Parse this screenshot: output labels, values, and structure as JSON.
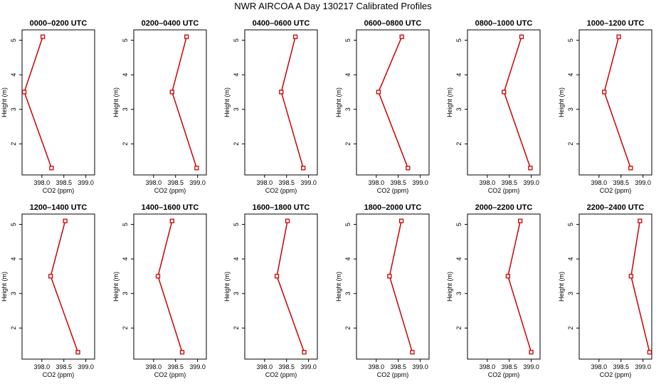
{
  "title": "NWR AIRCOA A  Day 130217  Calibrated Profiles",
  "colors": {
    "line": "#cc0000",
    "axis": "#000000",
    "background": "#ffffff"
  },
  "chart_data": [
    {
      "type": "line",
      "title": "0000–0200 UTC",
      "xlabel": "CO2 (ppm)",
      "ylabel": "Height (m)",
      "xlim": [
        397.55,
        399.2
      ],
      "ylim": [
        1.1,
        5.3
      ],
      "x_ticks": [
        "398.0",
        "398.5",
        "399.0"
      ],
      "y_ticks": [
        "2",
        "3",
        "4",
        "5"
      ],
      "grid": false,
      "x": [
        398.02,
        397.6,
        398.22
      ],
      "y": [
        5.1,
        3.5,
        1.3
      ]
    },
    {
      "type": "line",
      "title": "0200–0400 UTC",
      "xlabel": "CO2 (ppm)",
      "ylabel": "Height (m)",
      "xlim": [
        397.55,
        399.2
      ],
      "ylim": [
        1.1,
        5.3
      ],
      "x_ticks": [
        "398.0",
        "398.5",
        "399.0"
      ],
      "y_ticks": [
        "2",
        "3",
        "4",
        "5"
      ],
      "grid": false,
      "x": [
        398.75,
        398.42,
        398.98
      ],
      "y": [
        5.1,
        3.5,
        1.3
      ]
    },
    {
      "type": "line",
      "title": "0400–0600 UTC",
      "xlabel": "CO2 (ppm)",
      "ylabel": "Height (m)",
      "xlim": [
        397.55,
        399.2
      ],
      "ylim": [
        1.1,
        5.3
      ],
      "x_ticks": [
        "398.0",
        "398.5",
        "399.0"
      ],
      "y_ticks": [
        "2",
        "3",
        "4",
        "5"
      ],
      "grid": false,
      "x": [
        398.7,
        398.38,
        398.88
      ],
      "y": [
        5.1,
        3.5,
        1.3
      ]
    },
    {
      "type": "line",
      "title": "0600–0800 UTC",
      "xlabel": "CO2 (ppm)",
      "ylabel": "Height (m)",
      "xlim": [
        397.55,
        399.2
      ],
      "ylim": [
        1.1,
        5.3
      ],
      "x_ticks": [
        "398.0",
        "398.5",
        "399.0"
      ],
      "y_ticks": [
        "2",
        "3",
        "4",
        "5"
      ],
      "grid": false,
      "x": [
        398.58,
        398.05,
        398.72
      ],
      "y": [
        5.1,
        3.5,
        1.3
      ]
    },
    {
      "type": "line",
      "title": "0800–1000 UTC",
      "xlabel": "CO2 (ppm)",
      "ylabel": "Height (m)",
      "xlim": [
        397.55,
        399.2
      ],
      "ylim": [
        1.1,
        5.3
      ],
      "x_ticks": [
        "398.0",
        "398.5",
        "399.0"
      ],
      "y_ticks": [
        "2",
        "3",
        "4",
        "5"
      ],
      "grid": false,
      "x": [
        398.78,
        398.38,
        398.98
      ],
      "y": [
        5.1,
        3.5,
        1.3
      ]
    },
    {
      "type": "line",
      "title": "1000–1200 UTC",
      "xlabel": "CO2 (ppm)",
      "ylabel": "Height (m)",
      "xlim": [
        397.55,
        399.2
      ],
      "ylim": [
        1.1,
        5.3
      ],
      "x_ticks": [
        "398.0",
        "398.5",
        "399.0"
      ],
      "y_ticks": [
        "2",
        "3",
        "4",
        "5"
      ],
      "grid": false,
      "x": [
        398.45,
        398.12,
        398.72
      ],
      "y": [
        5.1,
        3.5,
        1.3
      ]
    },
    {
      "type": "line",
      "title": "1200–1400 UTC",
      "xlabel": "CO2 (ppm)",
      "ylabel": "Height (m)",
      "xlim": [
        397.55,
        399.2
      ],
      "ylim": [
        1.1,
        5.3
      ],
      "x_ticks": [
        "398.0",
        "398.5",
        "399.0"
      ],
      "y_ticks": [
        "2",
        "3",
        "4",
        "5"
      ],
      "grid": false,
      "x": [
        398.53,
        398.2,
        398.82
      ],
      "y": [
        5.1,
        3.5,
        1.3
      ]
    },
    {
      "type": "line",
      "title": "1400–1600 UTC",
      "xlabel": "CO2 (ppm)",
      "ylabel": "Height (m)",
      "xlim": [
        397.55,
        399.2
      ],
      "ylim": [
        1.1,
        5.3
      ],
      "x_ticks": [
        "398.0",
        "398.5",
        "399.0"
      ],
      "y_ticks": [
        "2",
        "3",
        "4",
        "5"
      ],
      "grid": false,
      "x": [
        398.42,
        398.1,
        398.65
      ],
      "y": [
        5.1,
        3.5,
        1.3
      ]
    },
    {
      "type": "line",
      "title": "1600–1800 UTC",
      "xlabel": "CO2 (ppm)",
      "ylabel": "Height (m)",
      "xlim": [
        397.55,
        399.2
      ],
      "ylim": [
        1.1,
        5.3
      ],
      "x_ticks": [
        "398.0",
        "398.5",
        "399.0"
      ],
      "y_ticks": [
        "2",
        "3",
        "4",
        "5"
      ],
      "grid": false,
      "x": [
        398.52,
        398.28,
        398.9
      ],
      "y": [
        5.1,
        3.5,
        1.3
      ]
    },
    {
      "type": "line",
      "title": "1800–2000 UTC",
      "xlabel": "CO2 (ppm)",
      "ylabel": "Height (m)",
      "xlim": [
        397.55,
        399.2
      ],
      "ylim": [
        1.1,
        5.3
      ],
      "x_ticks": [
        "398.0",
        "398.5",
        "399.0"
      ],
      "y_ticks": [
        "2",
        "3",
        "4",
        "5"
      ],
      "grid": false,
      "x": [
        398.57,
        398.3,
        398.82
      ],
      "y": [
        5.1,
        3.5,
        1.3
      ]
    },
    {
      "type": "line",
      "title": "2000–2200 UTC",
      "xlabel": "CO2 (ppm)",
      "ylabel": "Height (m)",
      "xlim": [
        397.55,
        399.2
      ],
      "ylim": [
        1.1,
        5.3
      ],
      "x_ticks": [
        "398.0",
        "398.5",
        "399.0"
      ],
      "y_ticks": [
        "2",
        "3",
        "4",
        "5"
      ],
      "grid": false,
      "x": [
        398.75,
        398.47,
        399.0
      ],
      "y": [
        5.1,
        3.5,
        1.3
      ]
    },
    {
      "type": "line",
      "title": "2200–2400 UTC",
      "xlabel": "CO2 (ppm)",
      "ylabel": "Height (m)",
      "xlim": [
        397.55,
        399.2
      ],
      "ylim": [
        1.1,
        5.3
      ],
      "x_ticks": [
        "398.0",
        "398.5",
        "399.0"
      ],
      "y_ticks": [
        "2",
        "3",
        "4",
        "5"
      ],
      "grid": false,
      "x": [
        398.93,
        398.73,
        399.15
      ],
      "y": [
        5.1,
        3.5,
        1.3
      ]
    }
  ]
}
